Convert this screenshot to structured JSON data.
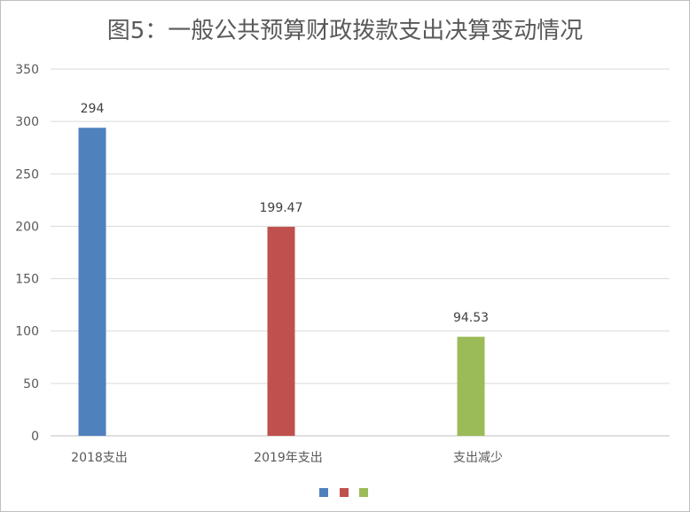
{
  "chart_data": {
    "type": "bar",
    "title": "图5：一般公共预算财政拨款支出决算变动情况",
    "categories": [
      "2018支出",
      "2019年支出",
      "支出减少"
    ],
    "values": [
      294,
      199.47,
      94.53
    ],
    "data_labels": [
      "294",
      "199.47",
      "94.53"
    ],
    "colors": [
      "#4f81bd",
      "#c0504d",
      "#9bbb59"
    ],
    "yticks": [
      "0",
      "50",
      "100",
      "150",
      "200",
      "250",
      "300",
      "350"
    ],
    "ylim": [
      0,
      350
    ],
    "grid": true,
    "legend": "bottom"
  }
}
